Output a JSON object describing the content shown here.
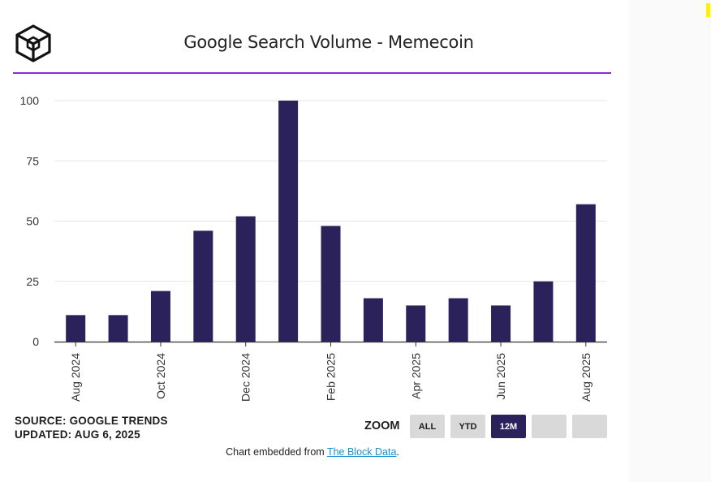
{
  "header": {
    "title": "Google Search Volume - Memecoin",
    "logo": "the-block-cube-logo"
  },
  "colors": {
    "bar": "#2b225c",
    "accent_rule": "#8a2be2",
    "active_button": "#2b225c",
    "link": "#1a8fd1"
  },
  "chart_data": {
    "type": "bar",
    "title": "Google Search Volume - Memecoin",
    "xlabel": "",
    "ylabel": "",
    "categories": [
      "Aug 2024",
      "Sep 2024",
      "Oct 2024",
      "Nov 2024",
      "Dec 2024",
      "Jan 2025",
      "Feb 2025",
      "Mar 2025",
      "Apr 2025",
      "May 2025",
      "Jun 2025",
      "Jul 2025",
      "Aug 2025"
    ],
    "values": [
      11,
      11,
      21,
      46,
      52,
      100,
      48,
      18,
      15,
      18,
      15,
      25,
      57
    ],
    "x_tick_labels": [
      "Aug 2024",
      "Oct 2024",
      "Dec 2024",
      "Feb 2025",
      "Apr 2025",
      "Jun 2025",
      "Aug 2025"
    ],
    "y_ticks": [
      "0",
      "25",
      "50",
      "75",
      "100"
    ],
    "ylim": [
      0,
      100
    ],
    "grid": true,
    "legend": "none"
  },
  "footer": {
    "source": "SOURCE: GOOGLE TRENDS",
    "updated": "UPDATED: AUG 6, 2025",
    "zoom_label": "ZOOM",
    "zoom_buttons": [
      "ALL",
      "YTD",
      "12M",
      "",
      ""
    ],
    "zoom_active": "12M",
    "embed_prefix": "Chart embedded from ",
    "embed_link": "The Block Data",
    "embed_suffix": "."
  }
}
